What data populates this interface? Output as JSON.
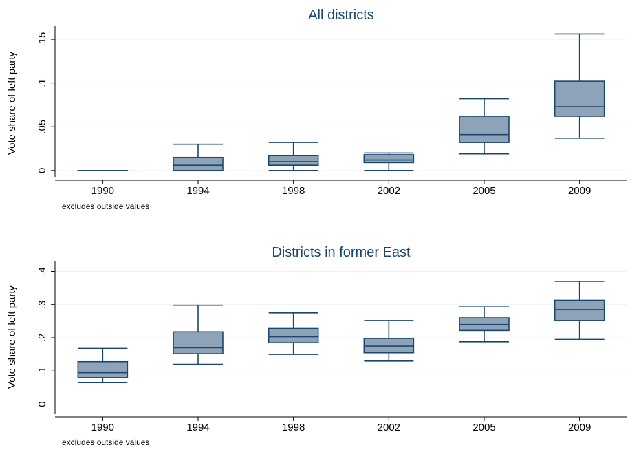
{
  "colors": {
    "box_fill": "#8fa3b8",
    "box_stroke": "#1a476f",
    "grid": "#eaf2f3",
    "axis": "#000000",
    "title": "#1a476f"
  },
  "chart_data": [
    {
      "type": "box",
      "title": "All districts",
      "ylabel": "Vote share of left party",
      "xlabel": "",
      "note": "excludes outside values",
      "ylim": [
        -0.008,
        0.165
      ],
      "yticks": [
        0,
        0.05,
        0.1,
        0.15
      ],
      "ytick_labels": [
        "0",
        ".05",
        ".1",
        ".15"
      ],
      "grid": true,
      "categories": [
        "1990",
        "1994",
        "1998",
        "2002",
        "2005",
        "2009"
      ],
      "boxes": [
        {
          "min": 0.0,
          "q1": 0.0,
          "median": 0.0,
          "q3": 0.0,
          "max": 0.0
        },
        {
          "min": 0.0,
          "q1": 0.0,
          "median": 0.006,
          "q3": 0.015,
          "max": 0.03
        },
        {
          "min": 0.0,
          "q1": 0.006,
          "median": 0.01,
          "q3": 0.017,
          "max": 0.032
        },
        {
          "min": 0.0,
          "q1": 0.009,
          "median": 0.012,
          "q3": 0.018,
          "max": 0.02
        },
        {
          "min": 0.019,
          "q1": 0.032,
          "median": 0.041,
          "q3": 0.062,
          "max": 0.082
        },
        {
          "min": 0.037,
          "q1": 0.062,
          "median": 0.073,
          "q3": 0.102,
          "max": 0.156
        }
      ]
    },
    {
      "type": "box",
      "title": "Districts in former East",
      "ylabel": "Vote share of left party",
      "xlabel": "",
      "note": "excludes outside values",
      "ylim": [
        -0.03,
        0.43
      ],
      "yticks": [
        0,
        0.1,
        0.2,
        0.3,
        0.4
      ],
      "ytick_labels": [
        "0",
        ".1",
        ".2",
        ".3",
        ".4"
      ],
      "grid": true,
      "categories": [
        "1990",
        "1994",
        "1998",
        "2002",
        "2005",
        "2009"
      ],
      "boxes": [
        {
          "min": 0.065,
          "q1": 0.08,
          "median": 0.095,
          "q3": 0.128,
          "max": 0.168
        },
        {
          "min": 0.12,
          "q1": 0.152,
          "median": 0.17,
          "q3": 0.218,
          "max": 0.298
        },
        {
          "min": 0.15,
          "q1": 0.185,
          "median": 0.203,
          "q3": 0.228,
          "max": 0.275
        },
        {
          "min": 0.13,
          "q1": 0.155,
          "median": 0.175,
          "q3": 0.198,
          "max": 0.252
        },
        {
          "min": 0.188,
          "q1": 0.222,
          "median": 0.24,
          "q3": 0.26,
          "max": 0.293
        },
        {
          "min": 0.195,
          "q1": 0.252,
          "median": 0.285,
          "q3": 0.313,
          "max": 0.37
        }
      ]
    }
  ]
}
